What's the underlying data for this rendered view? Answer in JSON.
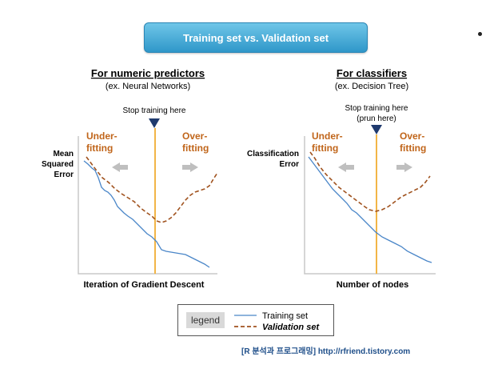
{
  "banner": {
    "title": "Training set vs. Validation set"
  },
  "left": {
    "heading": "For numeric predictors",
    "subheading": "(ex. Neural Networks)",
    "stop_label_1": "Stop training here",
    "underfit_1": "Under-",
    "underfit_2": "fitting",
    "overfit_1": "Over-",
    "overfit_2": "fitting",
    "ylabel_1": "Mean",
    "ylabel_2": "Squared",
    "ylabel_3": "Error",
    "xlabel": "Iteration of Gradient Descent"
  },
  "right": {
    "heading": "For classifiers",
    "subheading": "(ex. Decision Tree)",
    "stop_label_1": "Stop training here",
    "stop_label_2": "(prun here)",
    "underfit_1": "Under-",
    "underfit_2": "fitting",
    "overfit_1": "Over-",
    "overfit_2": "fitting",
    "ylabel_1": "Classification",
    "ylabel_2": "Error",
    "xlabel": "Number of nodes"
  },
  "legend": {
    "title": "legend",
    "training": "Training set",
    "validation": "Validation set"
  },
  "source": {
    "text": "[R 분석과 프로그래밍]  http://rfriend.tistory.com"
  },
  "colors": {
    "training_line": "#4a86c8",
    "validation_line": "#a0521e",
    "stop_line": "#f2b547",
    "arrow_marker": "#1f3a6e",
    "fit_label": "#c0651a"
  }
}
